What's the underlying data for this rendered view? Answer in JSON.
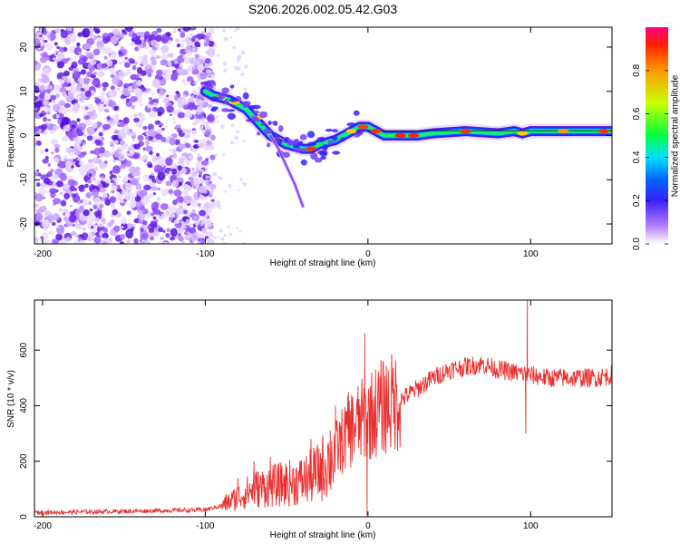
{
  "title": "S206.2026.002.05.42.G03",
  "chart_data": [
    {
      "type": "heatmap",
      "name": "spectrogram",
      "xlabel": "Height of straight line (km)",
      "ylabel": "Frequency (Hz)",
      "xlim": [
        -205,
        150
      ],
      "ylim": [
        -24.5,
        24.5
      ],
      "xticks": [
        -200,
        -100,
        0,
        100
      ],
      "yticks": [
        -20,
        -10,
        0,
        10,
        20
      ],
      "ridge": {
        "x": [
          -100,
          -95,
          -90,
          -85,
          -80,
          -75,
          -70,
          -65,
          -60,
          -55,
          -50,
          -45,
          -40,
          -35,
          -30,
          -25,
          -20,
          -15,
          -10,
          -5,
          0,
          5,
          10,
          20,
          30,
          40,
          60,
          80,
          90,
          95,
          100,
          110,
          120,
          130,
          150
        ],
        "y": [
          10,
          9,
          8.5,
          8,
          7,
          6,
          4,
          2,
          0,
          -1,
          -2,
          -2.5,
          -3,
          -3,
          -2,
          -1.5,
          -1,
          0,
          1,
          2,
          2,
          1,
          0,
          0,
          0,
          0.5,
          1,
          0.5,
          1,
          0.5,
          1,
          1,
          1,
          1,
          1
        ]
      },
      "branch": {
        "x": [
          -60,
          -55,
          -50,
          -45,
          -40
        ],
        "y": [
          0,
          -3,
          -7,
          -11,
          -16
        ]
      },
      "colorbar": {
        "label": "Normalized spectral amplitude",
        "range": [
          0,
          1
        ],
        "ticks": [
          0.0,
          0.2,
          0.4,
          0.6,
          0.8
        ]
      }
    },
    {
      "type": "line",
      "name": "snr",
      "xlabel": "Height of straight line (km)",
      "ylabel": "SNR (10 * v/v)",
      "xlim": [
        -205,
        150
      ],
      "ylim": [
        0,
        780
      ],
      "xticks": [
        -200,
        -100,
        0,
        100
      ],
      "yticks": [
        0,
        200,
        400,
        600
      ],
      "color": "#e8302f",
      "envelope": {
        "x": [
          -205,
          -150,
          -100,
          -90,
          -80,
          -70,
          -60,
          -50,
          -40,
          -30,
          -20,
          -10,
          0,
          10,
          20,
          30,
          40,
          50,
          60,
          70,
          80,
          90,
          100,
          110,
          120,
          130,
          140,
          150
        ],
        "y": [
          15,
          20,
          25,
          40,
          70,
          100,
          110,
          120,
          130,
          160,
          240,
          320,
          360,
          400,
          420,
          460,
          500,
          530,
          540,
          550,
          530,
          520,
          510,
          500,
          500,
          500,
          500,
          510
        ]
      },
      "spikes": [
        {
          "x": -80,
          "y": 140
        },
        {
          "x": -70,
          "y": 200
        },
        {
          "x": -60,
          "y": 215
        },
        {
          "x": -35,
          "y": 280
        },
        {
          "x": -20,
          "y": 400
        },
        {
          "x": -12,
          "y": 450
        },
        {
          "x": -2,
          "y": 660
        },
        {
          "x": -0.5,
          "y": 5
        },
        {
          "x": 60,
          "y": 570
        },
        {
          "x": 98,
          "y": 780
        },
        {
          "x": 97,
          "y": 300
        }
      ]
    }
  ]
}
